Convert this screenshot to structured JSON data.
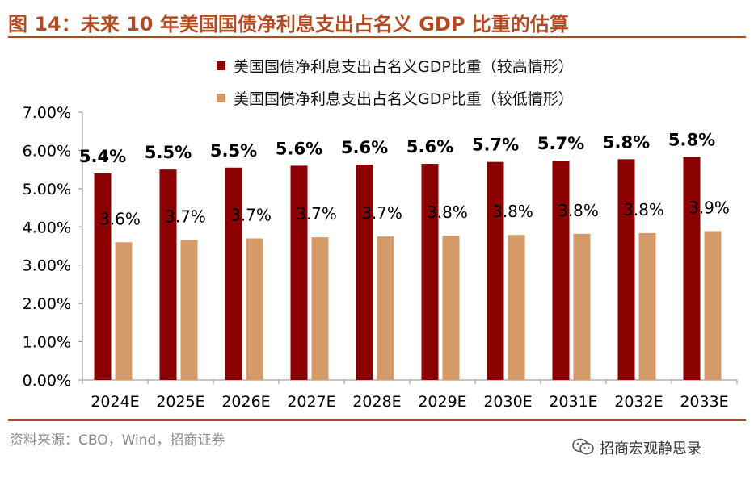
{
  "header": {
    "title": "图 14：未来 10 年美国国债净利息支出占名义 GDP 比重的估算"
  },
  "footer": {
    "source": "资料来源：CBO，Wind，招商证券",
    "brand": "招商宏观静思录"
  },
  "icons": {
    "wechat": "wechat-icon"
  },
  "colors": {
    "accent": "#b44a24",
    "high_series": "#8b0000",
    "low_series": "#d49a6a"
  },
  "chart_data": {
    "type": "bar",
    "title": "",
    "xlabel": "",
    "ylabel": "",
    "ylim": [
      0,
      0.07
    ],
    "yticks": [
      "7.00%",
      "6.00%",
      "5.00%",
      "4.00%",
      "3.00%",
      "2.00%",
      "1.00%",
      "0.00%"
    ],
    "ytick_values": [
      0.07,
      0.06,
      0.05,
      0.04,
      0.03,
      0.02,
      0.01,
      0.0
    ],
    "categories": [
      "2024E",
      "2025E",
      "2026E",
      "2027E",
      "2028E",
      "2029E",
      "2030E",
      "2031E",
      "2032E",
      "2033E"
    ],
    "legend_position": "top-right",
    "series": [
      {
        "name": "美国国债净利息支出占名义GDP比重（较高情形）",
        "color": "#8b0000",
        "values": [
          0.054,
          0.055,
          0.0555,
          0.056,
          0.0563,
          0.0565,
          0.057,
          0.0573,
          0.0577,
          0.0583
        ],
        "labels": [
          "5.4%",
          "5.5%",
          "5.5%",
          "5.6%",
          "5.6%",
          "5.6%",
          "5.7%",
          "5.7%",
          "5.8%",
          "5.8%"
        ]
      },
      {
        "name": "美国国债净利息支出占名义GDP比重（较低情形）",
        "color": "#d49a6a",
        "values": [
          0.036,
          0.0366,
          0.037,
          0.0373,
          0.0375,
          0.0377,
          0.0379,
          0.0382,
          0.0384,
          0.0389
        ],
        "labels": [
          "3.6%",
          "3.7%",
          "3.7%",
          "3.7%",
          "3.7%",
          "3.8%",
          "3.8%",
          "3.8%",
          "3.8%",
          "3.9%"
        ]
      }
    ]
  }
}
